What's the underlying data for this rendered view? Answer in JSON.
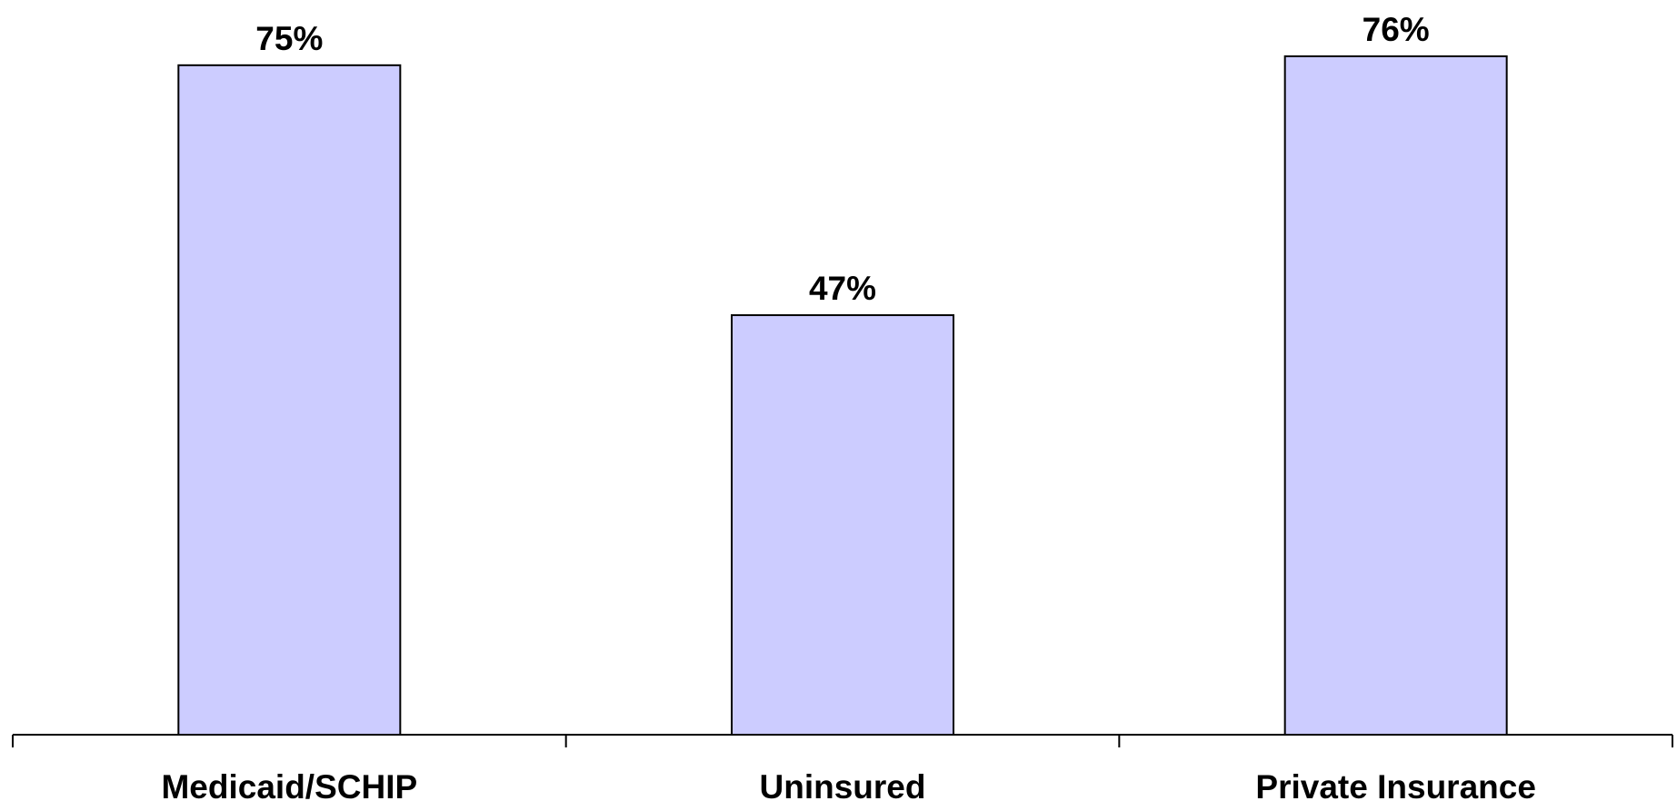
{
  "chart_data": {
    "type": "bar",
    "categories": [
      "Medicaid/SCHIP",
      "Uninsured",
      "Private Insurance"
    ],
    "values": [
      75,
      47,
      76
    ],
    "value_labels": [
      "75%",
      "47%",
      "76%"
    ],
    "title": "",
    "xlabel": "",
    "ylabel": "",
    "ylim": [
      0,
      76
    ],
    "grid": false,
    "legend": "none"
  },
  "colors": {
    "bar_fill": "#ccccff",
    "bar_stroke": "#000000",
    "axis": "#000000",
    "text": "#000000"
  }
}
